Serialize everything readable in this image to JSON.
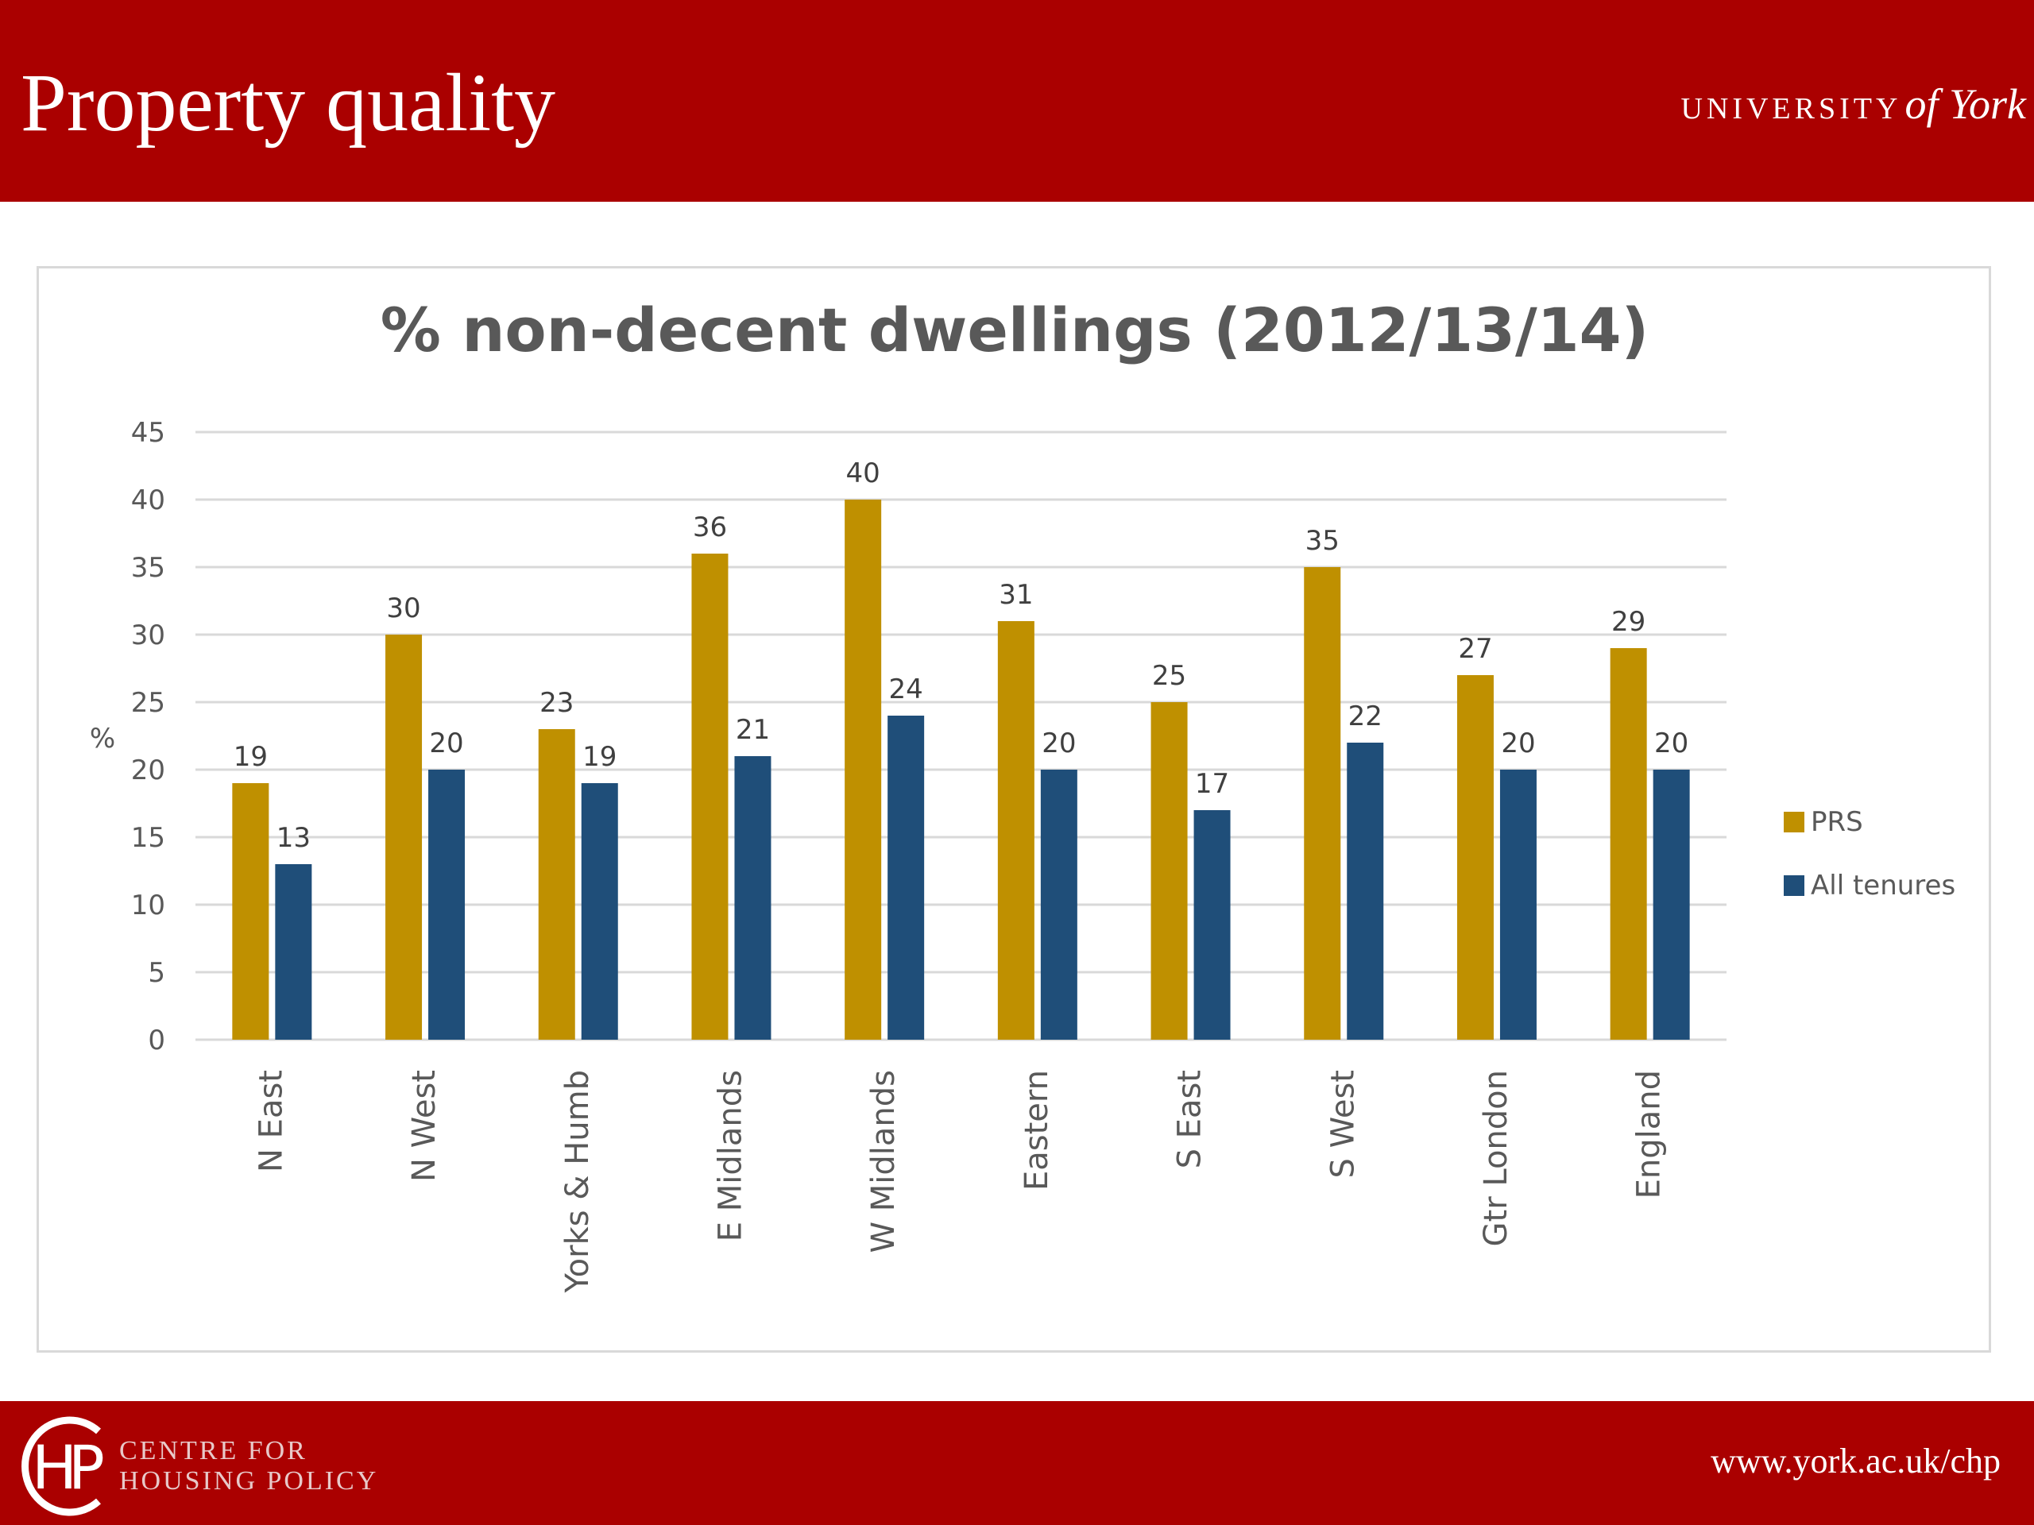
{
  "slide": {
    "title": "Property quality",
    "university_logo": {
      "caps": "UNIVERSITY",
      "script": "of York"
    },
    "footer_org_line1": "CENTRE FOR",
    "footer_org_line2": "HOUSING POLICY",
    "footer_url": "www.york.ac.uk/chp"
  },
  "colors": {
    "brand_red": "#aa0000",
    "prs": "#bf9000",
    "all_tenures": "#1f4e79"
  },
  "chart_data": {
    "type": "bar",
    "title": "% non-decent dwellings (2012/13/14)",
    "xlabel": "",
    "ylabel": "%",
    "ylim": [
      0,
      45
    ],
    "yticks": [
      0,
      5,
      10,
      15,
      20,
      25,
      30,
      35,
      40,
      45
    ],
    "grid": true,
    "legend_position": "right",
    "data_labels": true,
    "categories": [
      "N East",
      "N West",
      "Yorks & Humb",
      "E Midlands",
      "W Midlands",
      "Eastern",
      "S East",
      "S West",
      "Gtr London",
      "England"
    ],
    "series": [
      {
        "name": "PRS",
        "color": "#bf9000",
        "values": [
          19,
          30,
          23,
          36,
          40,
          31,
          25,
          35,
          27,
          29
        ]
      },
      {
        "name": "All tenures",
        "color": "#1f4e79",
        "values": [
          13,
          20,
          19,
          21,
          24,
          20,
          17,
          22,
          20,
          20
        ]
      }
    ]
  }
}
